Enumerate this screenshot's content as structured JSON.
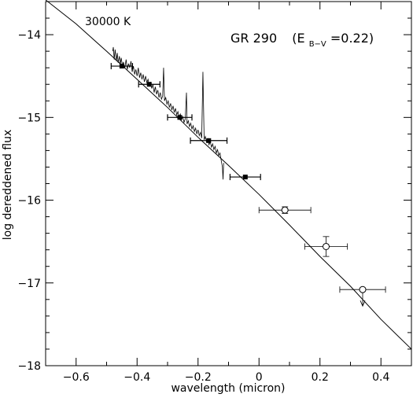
{
  "chart_data": {
    "type": "scatter",
    "xlabel": "wavelength (micron)",
    "ylabel": "log dereddened flux",
    "xlim": [
      -0.7,
      0.5
    ],
    "ylim": [
      -18,
      -13.6
    ],
    "x_ticks": [
      -0.6,
      -0.4,
      -0.2,
      0,
      0.2,
      0.4
    ],
    "x_tick_labels": [
      "−0.6",
      "−0.4",
      "−0.2",
      "0",
      "0.2",
      "0.4"
    ],
    "y_ticks": [
      -14,
      -15,
      -16,
      -17,
      -18
    ],
    "y_tick_labels": [
      "−14",
      "−15",
      "−16",
      "−17",
      "−18"
    ],
    "annotations": {
      "temperature": "30000 K",
      "object": "GR 290",
      "reddening_prefix": "(E",
      "reddening_sub": "B−V",
      "reddening_suffix": "=0.22)"
    },
    "model_curve": [
      [
        -0.7,
        -13.58
      ],
      [
        -0.6,
        -13.87
      ],
      [
        -0.5,
        -14.2
      ],
      [
        -0.4,
        -14.54
      ],
      [
        -0.3,
        -14.88
      ],
      [
        -0.2,
        -15.24
      ],
      [
        -0.1,
        -15.58
      ],
      [
        0.0,
        -15.93
      ],
      [
        0.1,
        -16.3
      ],
      [
        0.2,
        -16.68
      ],
      [
        0.3,
        -17.04
      ],
      [
        0.4,
        -17.44
      ],
      [
        0.5,
        -17.8
      ]
    ],
    "filled_points": [
      {
        "x": -0.45,
        "y": -14.38,
        "xerr": 0.035
      },
      {
        "x": -0.36,
        "y": -14.6,
        "xerr": 0.035
      },
      {
        "x": -0.26,
        "y": -15.0,
        "xerr": 0.04
      },
      {
        "x": -0.165,
        "y": -15.28,
        "xerr": 0.06
      },
      {
        "x": -0.045,
        "y": -15.72,
        "xerr": 0.05
      }
    ],
    "open_points": [
      {
        "x": 0.085,
        "y": -16.12,
        "xerr": 0.085,
        "yerr": 0.04,
        "upper_limit": false
      },
      {
        "x": 0.22,
        "y": -16.56,
        "xerr": 0.07,
        "yerr": 0.12,
        "upper_limit": false
      },
      {
        "x": 0.34,
        "y": -17.08,
        "xerr": 0.075,
        "yerr": 0,
        "upper_limit": true
      }
    ],
    "spectrum": [
      [
        -0.48,
        -14.2
      ],
      [
        -0.478,
        -14.15
      ],
      [
        -0.475,
        -14.3
      ],
      [
        -0.472,
        -14.18
      ],
      [
        -0.468,
        -14.32
      ],
      [
        -0.465,
        -14.22
      ],
      [
        -0.462,
        -14.34
      ],
      [
        -0.458,
        -14.26
      ],
      [
        -0.455,
        -14.36
      ],
      [
        -0.452,
        -14.28
      ],
      [
        -0.448,
        -14.38
      ],
      [
        -0.445,
        -14.33
      ],
      [
        -0.44,
        -14.4
      ],
      [
        -0.436,
        -14.3
      ],
      [
        -0.432,
        -14.42
      ],
      [
        -0.428,
        -14.35
      ],
      [
        -0.424,
        -14.4
      ],
      [
        -0.42,
        -14.32
      ],
      [
        -0.416,
        -14.45
      ],
      [
        -0.412,
        -14.38
      ],
      [
        -0.408,
        -14.48
      ],
      [
        -0.404,
        -14.42
      ],
      [
        -0.4,
        -14.5
      ],
      [
        -0.396,
        -14.4
      ],
      [
        -0.392,
        -14.52
      ],
      [
        -0.388,
        -14.46
      ],
      [
        -0.384,
        -14.54
      ],
      [
        -0.38,
        -14.48
      ],
      [
        -0.376,
        -14.57
      ],
      [
        -0.372,
        -14.5
      ],
      [
        -0.368,
        -14.58
      ],
      [
        -0.364,
        -14.54
      ],
      [
        -0.36,
        -14.62
      ],
      [
        -0.356,
        -14.57
      ],
      [
        -0.352,
        -14.65
      ],
      [
        -0.348,
        -14.6
      ],
      [
        -0.344,
        -14.7
      ],
      [
        -0.34,
        -14.63
      ],
      [
        -0.336,
        -14.72
      ],
      [
        -0.332,
        -14.67
      ],
      [
        -0.328,
        -14.76
      ],
      [
        -0.324,
        -14.7
      ],
      [
        -0.32,
        -14.78
      ],
      [
        -0.316,
        -14.74
      ],
      [
        -0.313,
        -14.4
      ],
      [
        -0.31,
        -14.8
      ],
      [
        -0.306,
        -14.76
      ],
      [
        -0.302,
        -14.84
      ],
      [
        -0.298,
        -14.8
      ],
      [
        -0.294,
        -14.88
      ],
      [
        -0.29,
        -14.83
      ],
      [
        -0.286,
        -14.91
      ],
      [
        -0.282,
        -14.86
      ],
      [
        -0.278,
        -14.94
      ],
      [
        -0.274,
        -14.89
      ],
      [
        -0.27,
        -14.97
      ],
      [
        -0.266,
        -14.93
      ],
      [
        -0.262,
        -15.0
      ],
      [
        -0.258,
        -14.96
      ],
      [
        -0.254,
        -15.03
      ],
      [
        -0.25,
        -14.99
      ],
      [
        -0.246,
        -15.06
      ],
      [
        -0.242,
        -15.02
      ],
      [
        -0.238,
        -14.7
      ],
      [
        -0.236,
        -15.08
      ],
      [
        -0.232,
        -15.04
      ],
      [
        -0.228,
        -15.11
      ],
      [
        -0.224,
        -15.07
      ],
      [
        -0.22,
        -15.14
      ],
      [
        -0.216,
        -15.1
      ],
      [
        -0.212,
        -15.17
      ],
      [
        -0.208,
        -15.13
      ],
      [
        -0.204,
        -15.2
      ],
      [
        -0.2,
        -15.15
      ],
      [
        -0.196,
        -15.22
      ],
      [
        -0.192,
        -15.18
      ],
      [
        -0.188,
        -15.25
      ],
      [
        -0.184,
        -14.45
      ],
      [
        -0.18,
        -15.27
      ],
      [
        -0.176,
        -15.23
      ],
      [
        -0.172,
        -15.3
      ],
      [
        -0.168,
        -15.26
      ],
      [
        -0.164,
        -15.33
      ],
      [
        -0.16,
        -15.29
      ],
      [
        -0.156,
        -15.36
      ],
      [
        -0.152,
        -15.32
      ],
      [
        -0.148,
        -15.39
      ],
      [
        -0.144,
        -15.35
      ],
      [
        -0.14,
        -15.43
      ],
      [
        -0.136,
        -15.39
      ],
      [
        -0.132,
        -15.46
      ],
      [
        -0.128,
        -15.43
      ],
      [
        -0.124,
        -15.52
      ],
      [
        -0.12,
        -15.6
      ],
      [
        -0.118,
        -15.75
      ],
      [
        -0.116,
        -15.55
      ]
    ]
  }
}
